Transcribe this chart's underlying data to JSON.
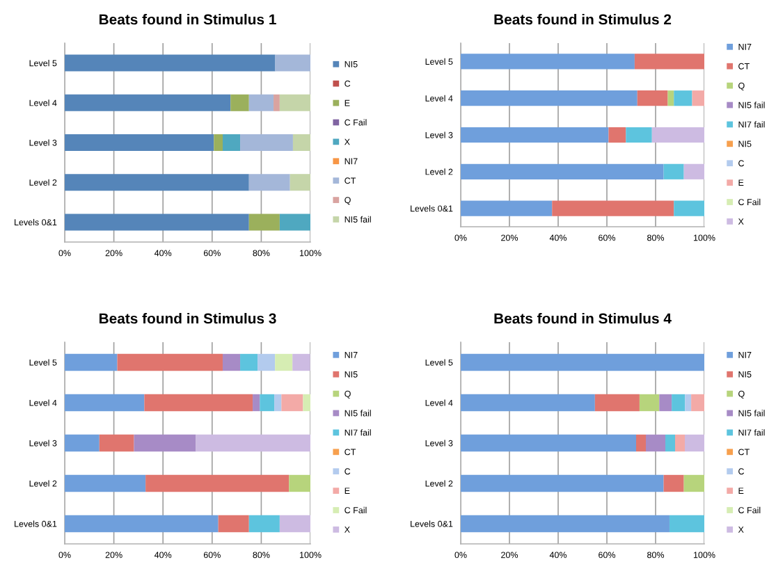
{
  "chart_data": [
    {
      "type": "bar",
      "title": "Beats found in Stimulus 1",
      "orientation": "horizontal",
      "stacked": true,
      "categories": [
        "Level 5",
        "Level 4",
        "Level 3",
        "Level 2",
        "Levels 0&1"
      ],
      "xlim": [
        0,
        100
      ],
      "xticks": [
        {
          "value": 0,
          "label": "0%"
        },
        {
          "value": 20,
          "label": "20%"
        },
        {
          "value": 40,
          "label": "40%"
        },
        {
          "value": 60,
          "label": "60%"
        },
        {
          "value": 80,
          "label": "80%"
        },
        {
          "value": 100,
          "label": "100%"
        }
      ],
      "grid": "x",
      "legend": "right",
      "series": [
        {
          "name": "NI5",
          "color": "#5585b9",
          "values": [
            85.7,
            67.5,
            60.7,
            75,
            75
          ]
        },
        {
          "name": "C",
          "color": "#c0504d",
          "values": [
            null,
            null,
            null,
            null,
            null
          ]
        },
        {
          "name": "E",
          "color": "#9bb05c",
          "values": [
            null,
            7.5,
            3.6,
            null,
            12.5
          ]
        },
        {
          "name": "C Fail",
          "color": "#8064a2",
          "values": [
            null,
            null,
            null,
            null,
            null
          ]
        },
        {
          "name": "X",
          "color": "#4fa8c0",
          "values": [
            null,
            null,
            7.1,
            null,
            12.5
          ]
        },
        {
          "name": "NI7",
          "color": "#f79646",
          "values": [
            null,
            null,
            null,
            null,
            null
          ]
        },
        {
          "name": "CT",
          "color": "#a4b7d9",
          "values": [
            14.3,
            10,
            21.5,
            16.7,
            null
          ]
        },
        {
          "name": "Q",
          "color": "#d9a3a0",
          "values": [
            null,
            2.5,
            null,
            null,
            null
          ]
        },
        {
          "name": "NI5 fail",
          "color": "#c5d5a9",
          "values": [
            null,
            12.5,
            7.1,
            8.3,
            null
          ]
        }
      ]
    },
    {
      "type": "bar",
      "title": "Beats found in Stimulus 2",
      "orientation": "horizontal",
      "stacked": true,
      "categories": [
        "Level 5",
        "Level 4",
        "Level 3",
        "Level 2",
        "Levels 0&1"
      ],
      "xlim": [
        0,
        100
      ],
      "xticks": [
        {
          "value": 0,
          "label": "0%"
        },
        {
          "value": 20,
          "label": "20%"
        },
        {
          "value": 40,
          "label": "40%"
        },
        {
          "value": 60,
          "label": "60%"
        },
        {
          "value": 80,
          "label": "80%"
        },
        {
          "value": 100,
          "label": "100%"
        }
      ],
      "grid": "x",
      "legend": "right",
      "series": [
        {
          "name": "NI7",
          "color": "#6f9fdc",
          "values": [
            71.4,
            72.5,
            60.7,
            83.3,
            37.5
          ]
        },
        {
          "name": "CT",
          "color": "#e0756e",
          "values": [
            28.6,
            12.5,
            7.1,
            null,
            50
          ]
        },
        {
          "name": "Q",
          "color": "#b7d47c",
          "values": [
            null,
            2.5,
            null,
            null,
            null
          ]
        },
        {
          "name": "NI5 fail",
          "color": "#a78bc6",
          "values": [
            null,
            null,
            null,
            null,
            null
          ]
        },
        {
          "name": "NI7 fail",
          "color": "#5dc4de",
          "values": [
            null,
            7.5,
            10.7,
            8.3,
            12.5
          ]
        },
        {
          "name": "NI5",
          "color": "#f7a04e",
          "values": [
            null,
            null,
            null,
            null,
            null
          ]
        },
        {
          "name": "C",
          "color": "#b3cbee",
          "values": [
            null,
            null,
            null,
            null,
            null
          ]
        },
        {
          "name": "E",
          "color": "#f3aaa7",
          "values": [
            null,
            5,
            null,
            null,
            null
          ]
        },
        {
          "name": "C Fail",
          "color": "#d6edb3",
          "values": [
            null,
            null,
            null,
            null,
            null
          ]
        },
        {
          "name": "X",
          "color": "#cdbbe2",
          "values": [
            null,
            null,
            21.5,
            8.4,
            null
          ]
        }
      ]
    },
    {
      "type": "bar",
      "title": "Beats found in Stimulus 3",
      "orientation": "horizontal",
      "stacked": true,
      "categories": [
        "Level 5",
        "Level 4",
        "Level 3",
        "Level 2",
        "Levels 0&1"
      ],
      "xlim": [
        0,
        100
      ],
      "xticks": [
        {
          "value": 0,
          "label": "0%"
        },
        {
          "value": 20,
          "label": "20%"
        },
        {
          "value": 40,
          "label": "40%"
        },
        {
          "value": 60,
          "label": "60%"
        },
        {
          "value": 80,
          "label": "80%"
        },
        {
          "value": 100,
          "label": "100%"
        }
      ],
      "grid": "x",
      "legend": "right",
      "series": [
        {
          "name": "NI7",
          "color": "#6f9fdc",
          "values": [
            21.4,
            32.4,
            14.1,
            32.9,
            62.5
          ]
        },
        {
          "name": "NI5",
          "color": "#e0756e",
          "values": [
            42.9,
            44.1,
            14.1,
            58.4,
            12.5
          ]
        },
        {
          "name": "Q",
          "color": "#b7d47c",
          "values": [
            null,
            null,
            null,
            8.7,
            null
          ]
        },
        {
          "name": "NI5 fail",
          "color": "#a78bc6",
          "values": [
            7.1,
            2.9,
            25.2,
            null,
            null
          ]
        },
        {
          "name": "NI7 fail",
          "color": "#5dc4de",
          "values": [
            7.1,
            5.9,
            null,
            null,
            12.5
          ]
        },
        {
          "name": "CT",
          "color": "#f7a04e",
          "values": [
            null,
            null,
            null,
            null,
            null
          ]
        },
        {
          "name": "C",
          "color": "#b3cbee",
          "values": [
            7.1,
            2.9,
            null,
            null,
            null
          ]
        },
        {
          "name": "E",
          "color": "#f3aaa7",
          "values": [
            null,
            8.8,
            null,
            null,
            null
          ]
        },
        {
          "name": "C Fail",
          "color": "#d6edb3",
          "values": [
            7.1,
            3.0,
            null,
            null,
            null
          ]
        },
        {
          "name": "X",
          "color": "#cdbbe2",
          "values": [
            7.2,
            null,
            46.6,
            null,
            12.5
          ]
        }
      ]
    },
    {
      "type": "bar",
      "title": "Beats found in Stimulus 4",
      "orientation": "horizontal",
      "stacked": true,
      "categories": [
        "Level 5",
        "Level 4",
        "Level 3",
        "Level 2",
        "Levels 0&1"
      ],
      "xlim": [
        0,
        100
      ],
      "xticks": [
        {
          "value": 0,
          "label": "0%"
        },
        {
          "value": 20,
          "label": "20%"
        },
        {
          "value": 40,
          "label": "40%"
        },
        {
          "value": 60,
          "label": "60%"
        },
        {
          "value": 80,
          "label": "80%"
        },
        {
          "value": 100,
          "label": "100%"
        }
      ],
      "grid": "x",
      "legend": "right",
      "series": [
        {
          "name": "NI7",
          "color": "#6f9fdc",
          "values": [
            100,
            55.1,
            72,
            83.3,
            85.7
          ]
        },
        {
          "name": "NI5",
          "color": "#e0756e",
          "values": [
            null,
            18.3,
            4,
            8.3,
            null
          ]
        },
        {
          "name": "Q",
          "color": "#b7d47c",
          "values": [
            null,
            8.1,
            null,
            8.4,
            null
          ]
        },
        {
          "name": "NI5 fail",
          "color": "#a78bc6",
          "values": [
            null,
            5.1,
            8,
            null,
            null
          ]
        },
        {
          "name": "NI7 fail",
          "color": "#5dc4de",
          "values": [
            null,
            5.5,
            4,
            null,
            14.3
          ]
        },
        {
          "name": "CT",
          "color": "#f7a04e",
          "values": [
            null,
            null,
            null,
            null,
            null
          ]
        },
        {
          "name": "C",
          "color": "#b3cbee",
          "values": [
            null,
            2.5,
            null,
            null,
            null
          ]
        },
        {
          "name": "E",
          "color": "#f3aaa7",
          "values": [
            null,
            5.4,
            4,
            null,
            null
          ]
        },
        {
          "name": "C Fail",
          "color": "#d6edb3",
          "values": [
            null,
            null,
            null,
            null,
            null
          ]
        },
        {
          "name": "X",
          "color": "#cdbbe2",
          "values": [
            null,
            null,
            8,
            null,
            null
          ]
        }
      ]
    }
  ]
}
